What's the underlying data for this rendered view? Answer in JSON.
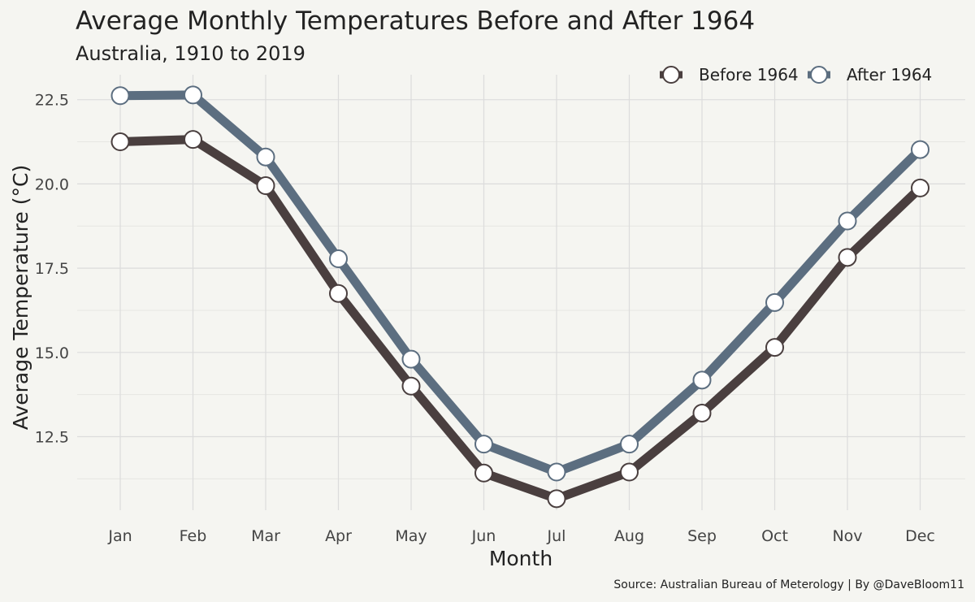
{
  "chart_data": {
    "type": "line",
    "title": "Average Monthly Temperatures Before and After 1964",
    "subtitle": "Australia, 1910 to 2019",
    "xlabel": "Month",
    "ylabel": "Average Temperature (°C)",
    "caption": "Source: Australian Bureau of Meterology  |  By @DaveBloom11",
    "categories": [
      "Jan",
      "Feb",
      "Mar",
      "Apr",
      "May",
      "Jun",
      "Jul",
      "Aug",
      "Sep",
      "Oct",
      "Nov",
      "Dec"
    ],
    "yticks": [
      "12.5",
      "15.0",
      "17.5",
      "20.0",
      "22.5"
    ],
    "ylim": [
      10.4,
      23.2
    ],
    "grid": true,
    "legend_position": "top-right",
    "series": [
      {
        "name": "Before 1964",
        "color": "#4a3f3f",
        "values": [
          21.25,
          21.32,
          19.95,
          16.75,
          14.0,
          11.42,
          10.66,
          11.45,
          13.2,
          15.15,
          17.82,
          19.88
        ]
      },
      {
        "name": "After 1964",
        "color": "#5c6e80",
        "values": [
          22.62,
          22.64,
          20.8,
          17.78,
          14.8,
          12.28,
          11.45,
          12.28,
          14.18,
          16.48,
          18.9,
          21.02
        ]
      }
    ]
  }
}
